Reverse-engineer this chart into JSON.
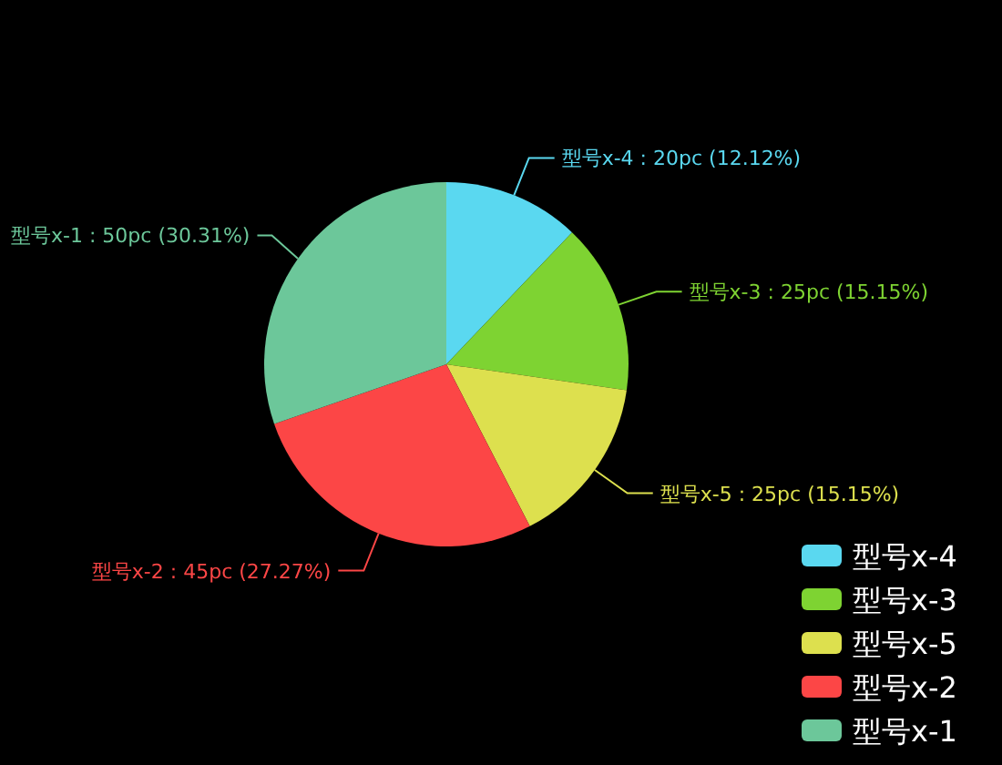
{
  "chart_data": {
    "type": "pie",
    "categories": [
      "型号x-4",
      "型号x-3",
      "型号x-5",
      "型号x-2",
      "型号x-1"
    ],
    "values": [
      20,
      25,
      25,
      45,
      50
    ],
    "colors": [
      "#5ad8f0",
      "#7ed332",
      "#dde04e",
      "#fc4646",
      "#6cc79a"
    ],
    "value_labels": [
      "型号x-4 : 20pc (12.12%)",
      "型号x-3 : 25pc (15.15%)",
      "型号x-5 : 25pc (15.15%)",
      "型号x-2 : 45pc (27.27%)",
      "型号x-1 : 50pc (30.31%)"
    ],
    "legend": "right"
  }
}
